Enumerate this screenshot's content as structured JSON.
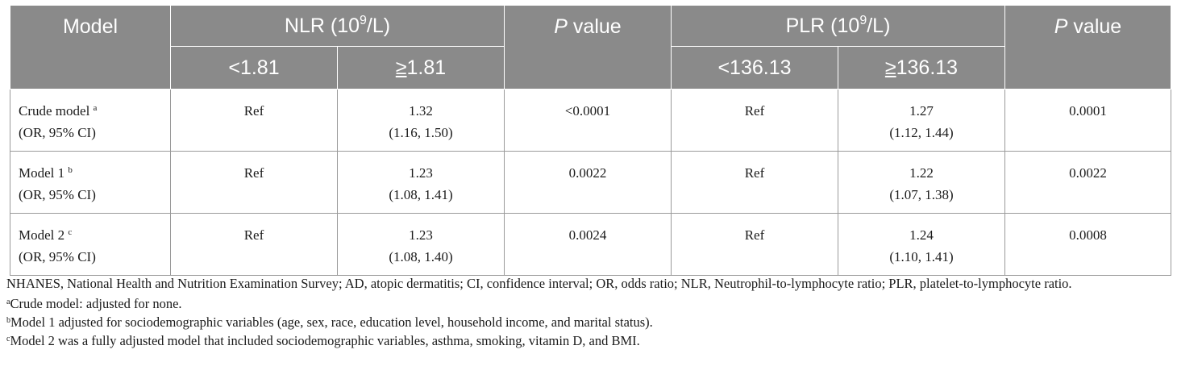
{
  "table": {
    "header": {
      "model": "Model",
      "nlr_prefix": "NLR (10",
      "nlr_exp": "9",
      "nlr_suffix": "/L)",
      "p_italic": "P",
      "p_rest": " value",
      "plr_prefix": "PLR (10",
      "plr_exp": "9",
      "plr_suffix": "/L)",
      "nlr_low": "<1.81",
      "nlr_high_sym": "≥",
      "nlr_high_val": "1.81",
      "plr_low": "<136.13",
      "plr_high_sym": "≥",
      "plr_high_val": "136.13"
    },
    "rows": [
      {
        "model_name": "Crude model",
        "sup": "a",
        "model_sub": "(OR, 95% CI)",
        "nlr_low": "Ref",
        "nlr_high_or": "1.32",
        "nlr_high_ci": "(1.16, 1.50)",
        "nlr_p": "<0.0001",
        "plr_low": "Ref",
        "plr_high_or": "1.27",
        "plr_high_ci": "(1.12, 1.44)",
        "plr_p": "0.0001"
      },
      {
        "model_name": "Model 1",
        "sup": "b",
        "model_sub": "(OR, 95% CI)",
        "nlr_low": "Ref",
        "nlr_high_or": "1.23",
        "nlr_high_ci": "(1.08, 1.41)",
        "nlr_p": "0.0022",
        "plr_low": "Ref",
        "plr_high_or": "1.22",
        "plr_high_ci": "(1.07, 1.38)",
        "plr_p": "0.0022"
      },
      {
        "model_name": "Model 2",
        "sup": "c",
        "model_sub": "(OR, 95% CI)",
        "nlr_low": "Ref",
        "nlr_high_or": "1.23",
        "nlr_high_ci": "(1.08, 1.40)",
        "nlr_p": "0.0024",
        "plr_low": "Ref",
        "plr_high_or": "1.24",
        "plr_high_ci": "(1.10, 1.41)",
        "plr_p": "0.0008"
      }
    ]
  },
  "notes": {
    "abbreviations": "NHANES, National Health and Nutrition Examination Survey; AD, atopic dermatitis; CI, confidence interval; OR, odds ratio; NLR, Neutrophil-to-lymphocyte ratio; PLR, platelet-to-lymphocyte ratio.",
    "footnotes": [
      {
        "sup": "a",
        "text": "Crude model: adjusted for none."
      },
      {
        "sup": "b",
        "text": "Model 1 adjusted for sociodemographic variables (age, sex, race, education level, household income, and marital status)."
      },
      {
        "sup": "c",
        "text": "Model 2 was a fully adjusted model that included sociodemographic variables, asthma, smoking, vitamin D, and BMI."
      }
    ]
  }
}
